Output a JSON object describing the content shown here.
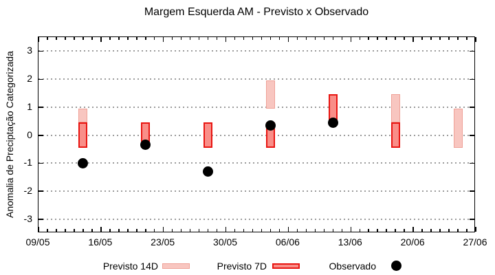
{
  "title": "Margem Esquerda AM - Previsto x Observado",
  "colors": {
    "forecast_14d_fill": "#f8c6c0",
    "forecast_14d_border": "#efa096",
    "forecast_7d_fill": "#f98e88",
    "forecast_7d_border": "#e81410",
    "observed": "#000000",
    "grid": "#9a9a9a"
  },
  "chart_data": {
    "type": "bar",
    "title": "Margem Esquerda AM - Previsto x Observado",
    "xlabel": "",
    "ylabel": "Anomalia de Preciptação Categorizada",
    "ylim": [
      -3.5,
      3.5
    ],
    "yticks": [
      -3,
      -2,
      -1,
      0,
      1,
      2,
      3
    ],
    "grid": true,
    "legend_position": "bottom",
    "x_axis_days_range": [
      0,
      49
    ],
    "x_ticks": [
      {
        "label": "09/05",
        "day": 0
      },
      {
        "label": "16/05",
        "day": 7
      },
      {
        "label": "23/05",
        "day": 14
      },
      {
        "label": "30/05",
        "day": 21
      },
      {
        "label": "06/06",
        "day": 28
      },
      {
        "label": "13/06",
        "day": 35
      },
      {
        "label": "20/06",
        "day": 42
      },
      {
        "label": "27/06",
        "day": 49
      }
    ],
    "series": [
      {
        "name": "Previsto 14D",
        "type": "range_bar",
        "points": [
          {
            "date": "14/05",
            "day": 5,
            "low": 0.45,
            "high": 0.95
          },
          {
            "date": "04/06",
            "day": 26,
            "low": 0.95,
            "high": 1.95
          },
          {
            "date": "18/06",
            "day": 40,
            "low": 0.45,
            "high": 1.45
          },
          {
            "date": "25/06",
            "day": 47,
            "low": -0.45,
            "high": 0.95
          }
        ]
      },
      {
        "name": "Previsto 7D",
        "type": "range_bar",
        "points": [
          {
            "date": "14/05",
            "day": 5,
            "low": -0.45,
            "high": 0.45
          },
          {
            "date": "21/05",
            "day": 12,
            "low": -0.45,
            "high": 0.45
          },
          {
            "date": "28/05",
            "day": 19,
            "low": -0.45,
            "high": 0.45
          },
          {
            "date": "04/06",
            "day": 26,
            "low": -0.45,
            "high": 0.45
          },
          {
            "date": "11/06",
            "day": 33,
            "low": 0.45,
            "high": 1.45
          },
          {
            "date": "18/06",
            "day": 40,
            "low": -0.45,
            "high": 0.45
          }
        ]
      },
      {
        "name": "Observado",
        "type": "scatter",
        "points": [
          {
            "date": "14/05",
            "day": 5,
            "value": -1.0
          },
          {
            "date": "21/05",
            "day": 12,
            "value": -0.35
          },
          {
            "date": "28/05",
            "day": 19,
            "value": -1.3
          },
          {
            "date": "04/06",
            "day": 26,
            "value": 0.35
          },
          {
            "date": "11/06",
            "day": 33,
            "value": 0.45
          }
        ]
      }
    ]
  }
}
